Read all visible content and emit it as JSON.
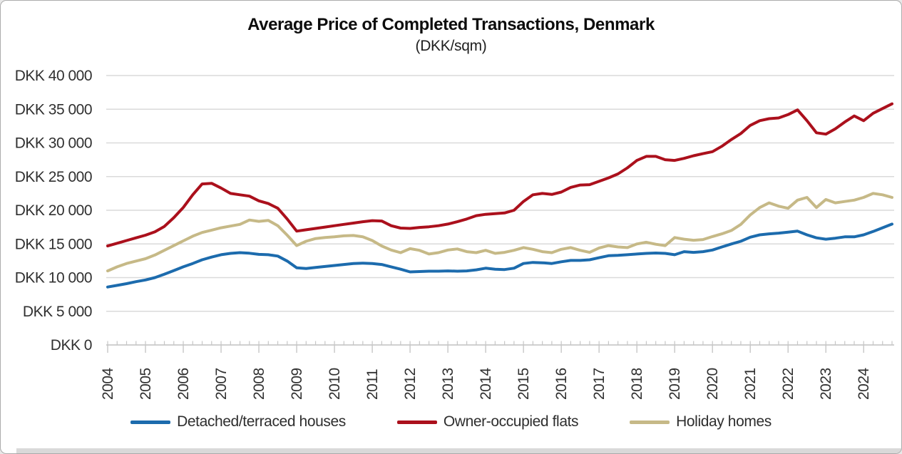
{
  "title": "Average Price of Completed Transactions, Denmark",
  "subtitle": "(DKK/sqm)",
  "y_axis": {
    "tick_labels": [
      "DKK 40 000",
      "DKK 35 000",
      "DKK 30 000",
      "DKK 25 000",
      "DKK 20 000",
      "DKK 15 000",
      "DKK 10 000",
      "DKK 5 000",
      "DKK 0"
    ],
    "min": 0,
    "max": 40000,
    "step": 5000
  },
  "x_axis": {
    "tick_labels": [
      "2004",
      "2005",
      "2006",
      "2007",
      "2008",
      "2009",
      "2010",
      "2011",
      "2012",
      "2013",
      "2014",
      "2015",
      "2016",
      "2017",
      "2018",
      "2019",
      "2020",
      "2021",
      "2022",
      "2023",
      "2024"
    ],
    "minor_ticks_per_year": 4
  },
  "chart_data": {
    "type": "line",
    "x_unit": "quarter",
    "x_start": "2004 Q1",
    "x_end": "2024 Q4",
    "ylim": [
      0,
      40000
    ],
    "grid": true,
    "legend_position": "bottom",
    "series": [
      {
        "name": "Detached/terraced houses",
        "color": "#1c6bad",
        "values": [
          8600,
          8850,
          9100,
          9400,
          9650,
          10000,
          10500,
          11050,
          11600,
          12100,
          12650,
          13050,
          13400,
          13600,
          13700,
          13620,
          13450,
          13400,
          13200,
          12450,
          11450,
          11350,
          11500,
          11650,
          11800,
          11950,
          12100,
          12150,
          12100,
          11950,
          11600,
          11250,
          10850,
          10900,
          10950,
          10950,
          11000,
          10950,
          11000,
          11150,
          11400,
          11250,
          11200,
          11400,
          12100,
          12250,
          12200,
          12100,
          12350,
          12550,
          12550,
          12650,
          12950,
          13250,
          13300,
          13400,
          13500,
          13600,
          13650,
          13600,
          13400,
          13850,
          13750,
          13850,
          14100,
          14550,
          15000,
          15400,
          16000,
          16350,
          16500,
          16600,
          16750,
          16900,
          16350,
          15900,
          15700,
          15850,
          16050,
          16050,
          16350,
          16850,
          17400,
          17950
        ]
      },
      {
        "name": "Owner-occupied flats",
        "color": "#ab101c",
        "values": [
          14700,
          15100,
          15500,
          15900,
          16300,
          16800,
          17600,
          18900,
          20400,
          22300,
          23900,
          24000,
          23300,
          22500,
          22300,
          22100,
          21400,
          21000,
          20300,
          18700,
          16900,
          17100,
          17300,
          17500,
          17700,
          17900,
          18100,
          18300,
          18450,
          18400,
          17700,
          17350,
          17300,
          17450,
          17550,
          17700,
          17950,
          18300,
          18700,
          19200,
          19400,
          19500,
          19600,
          20000,
          21300,
          22300,
          22500,
          22350,
          22700,
          23400,
          23750,
          23800,
          24300,
          24800,
          25400,
          26300,
          27400,
          28000,
          28000,
          27500,
          27400,
          27700,
          28100,
          28400,
          28700,
          29500,
          30500,
          31400,
          32600,
          33300,
          33600,
          33700,
          34200,
          34900,
          33300,
          31500,
          31300,
          32100,
          33100,
          34000,
          33300,
          34400,
          35100,
          35800
        ]
      },
      {
        "name": "Holiday homes",
        "color": "#c6b987",
        "values": [
          11000,
          11600,
          12100,
          12450,
          12800,
          13350,
          14050,
          14750,
          15450,
          16150,
          16700,
          17050,
          17400,
          17650,
          17900,
          18550,
          18350,
          18500,
          17700,
          16300,
          14750,
          15400,
          15800,
          15950,
          16050,
          16200,
          16250,
          16050,
          15500,
          14700,
          14100,
          13700,
          14300,
          14050,
          13500,
          13700,
          14100,
          14250,
          13850,
          13700,
          14050,
          13600,
          13750,
          14050,
          14450,
          14200,
          13850,
          13700,
          14200,
          14450,
          14050,
          13750,
          14400,
          14750,
          14550,
          14450,
          15000,
          15250,
          14950,
          14750,
          15950,
          15700,
          15550,
          15650,
          16100,
          16500,
          17000,
          17900,
          19300,
          20400,
          21100,
          20600,
          20300,
          21500,
          21900,
          20400,
          21600,
          21100,
          21300,
          21500,
          21900,
          22500,
          22300,
          21900
        ]
      }
    ]
  },
  "colors": {
    "gridline": "#dadada",
    "axis": "#c6c6c6",
    "tick_text": "#303030",
    "background": "#ffffff"
  }
}
